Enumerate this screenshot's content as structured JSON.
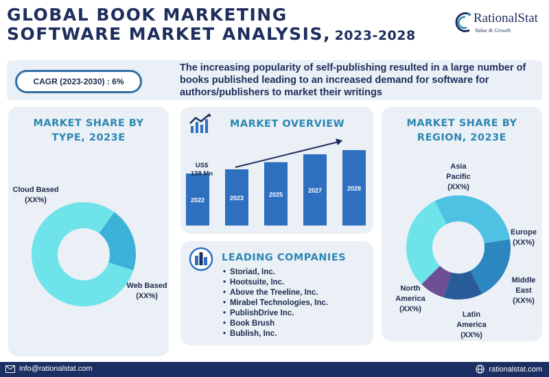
{
  "header": {
    "title_line1": "GLOBAL BOOK MARKETING",
    "title_line2": "SOFTWARE MARKET ANALYSIS,",
    "title_years": "2023-2028",
    "logo_name": "RationalStat",
    "logo_tagline": "Value & Growth"
  },
  "banner": {
    "cagr": "CAGR (2023-2030) : 6%",
    "text": "The increasing popularity of self-publishing resulted in a large number of books published leading to an increased demand for software for authors/publishers to market their writings"
  },
  "panels": {
    "type_title": "MARKET SHARE BY TYPE, 2023E",
    "overview_title": "MARKET OVERVIEW",
    "companies_title": "LEADING COMPANIES",
    "region_title": "MARKET SHARE BY REGION, 2023E"
  },
  "companies": [
    "Storiad, Inc.",
    "Hootsuite, Inc.",
    "Above the Treeline, Inc.",
    "Mirabel Technologies, Inc.",
    "PublishDrive Inc.",
    "Book Brush",
    "Bublish, Inc."
  ],
  "footer": {
    "email": "info@rationalstat.com",
    "website": "rationalstat.com"
  },
  "colors": {
    "navy": "#1c2f63",
    "accent": "#2b86b3",
    "bar": "#2e6fc0"
  },
  "chart_data": [
    {
      "type": "pie",
      "title": "MARKET SHARE BY TYPE, 2023E",
      "labels": [
        "Cloud Based",
        "Web Based"
      ],
      "value_labels": [
        "(XX%)",
        "(XX%)"
      ],
      "values": [
        80,
        20
      ],
      "colors": [
        "#6ee3ea",
        "#3cb2d8"
      ]
    },
    {
      "type": "bar",
      "title": "MARKET OVERVIEW",
      "categories": [
        "2022",
        "2023",
        "2025",
        "2027",
        "2028"
      ],
      "values": [
        138,
        149,
        168,
        189,
        200
      ],
      "annotation": "US$ 138 Mn",
      "annotation_line1": "US$",
      "annotation_line2": "138 Mn",
      "trend_arrow": true
    },
    {
      "type": "pie",
      "title": "MARKET SHARE BY REGION, 2023E",
      "labels": [
        "North America",
        "Asia Pacific",
        "Europe",
        "Middle East",
        "Latin America"
      ],
      "value_labels": [
        "(XX%)",
        "(XX%)",
        "(XX%)",
        "(XX%)",
        "(XX%)"
      ],
      "values": [
        30,
        30,
        20,
        12,
        8
      ],
      "colors": [
        "#6ee3ea",
        "#4fc1e3",
        "#2c86bf",
        "#2a5c9a",
        "#6e4f93"
      ]
    }
  ]
}
